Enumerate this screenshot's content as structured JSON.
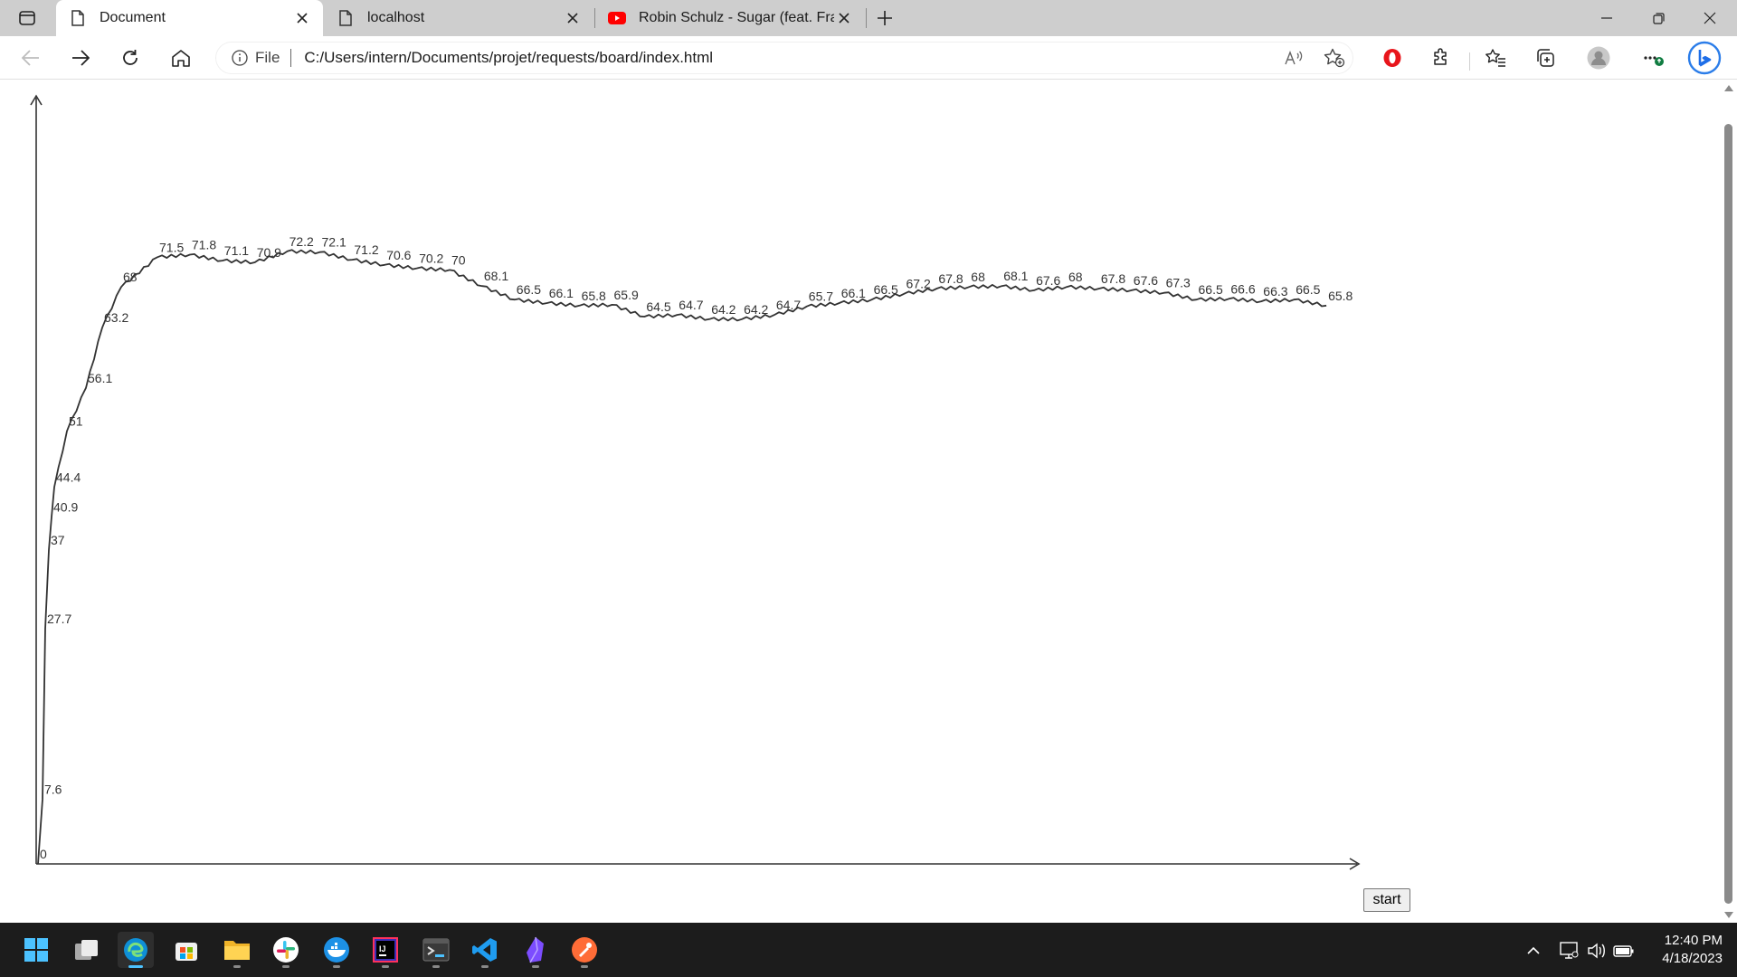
{
  "browser": {
    "tabs": [
      {
        "label": "Document",
        "icon": "page-icon",
        "active": true
      },
      {
        "label": "localhost",
        "icon": "page-icon",
        "active": false
      },
      {
        "label": "Robin Schulz - Sugar (feat. Franc",
        "icon": "youtube-icon",
        "active": false
      }
    ],
    "address": {
      "scheme": "File",
      "url": "C:/Users/intern/Documents/projet/requests/board/index.html"
    }
  },
  "page": {
    "start_button_label": "start"
  },
  "chart_data": {
    "type": "line",
    "title": "",
    "xlabel": "",
    "ylabel": "",
    "ylim": [
      0,
      100
    ],
    "series": [
      {
        "values": [
          0,
          7.6,
          27.7,
          37,
          40.9,
          44.4,
          51,
          56.1,
          63.2,
          68,
          71.5,
          71.8,
          71.1,
          70.9,
          72.2,
          72.1,
          71.2,
          70.6,
          70.2,
          70,
          68.1,
          66.5,
          66.1,
          65.8,
          65.9,
          64.5,
          64.7,
          64.2,
          64.2,
          64.7,
          65.7,
          66.1,
          66.5,
          67.2,
          67.8,
          68,
          68.1,
          67.6,
          68,
          67.8,
          67.6,
          67.3,
          66.5,
          66.6,
          66.3,
          66.5,
          65.8
        ],
        "labels": [
          "0",
          "7.6",
          "27.7",
          "37",
          "40.9",
          "44.4",
          "51",
          "56.1",
          "63.2",
          "68",
          "71.5",
          "71.8",
          "71.1",
          "70.9",
          "72.2",
          "72.1",
          "71.2",
          "70.6",
          "70.2",
          "70",
          "68.1",
          "66.5",
          "66.1",
          "65.8",
          "65.9",
          "64.5",
          "64.7",
          "64.2",
          "64.2",
          "64.7",
          "65.7",
          "66.1",
          "66.5",
          "67.2",
          "67.8",
          "68",
          "68.1",
          "67.6",
          "68",
          "67.8",
          "67.6",
          "67.3",
          "66.5",
          "66.6",
          "66.3",
          "66.5",
          "65.8"
        ]
      }
    ],
    "grid": false,
    "legend": "none",
    "line_color": "#333333"
  },
  "taskbar": {
    "apps": [
      "start-icon",
      "task-view-icon",
      "edge-icon",
      "store-icon",
      "file-explorer-icon",
      "slack-icon",
      "docker-icon",
      "intellij-icon",
      "terminal-icon",
      "vscode-icon",
      "obsidian-icon",
      "postman-icon"
    ],
    "clock": {
      "time": "12:40 PM",
      "date": "4/18/2023"
    }
  }
}
